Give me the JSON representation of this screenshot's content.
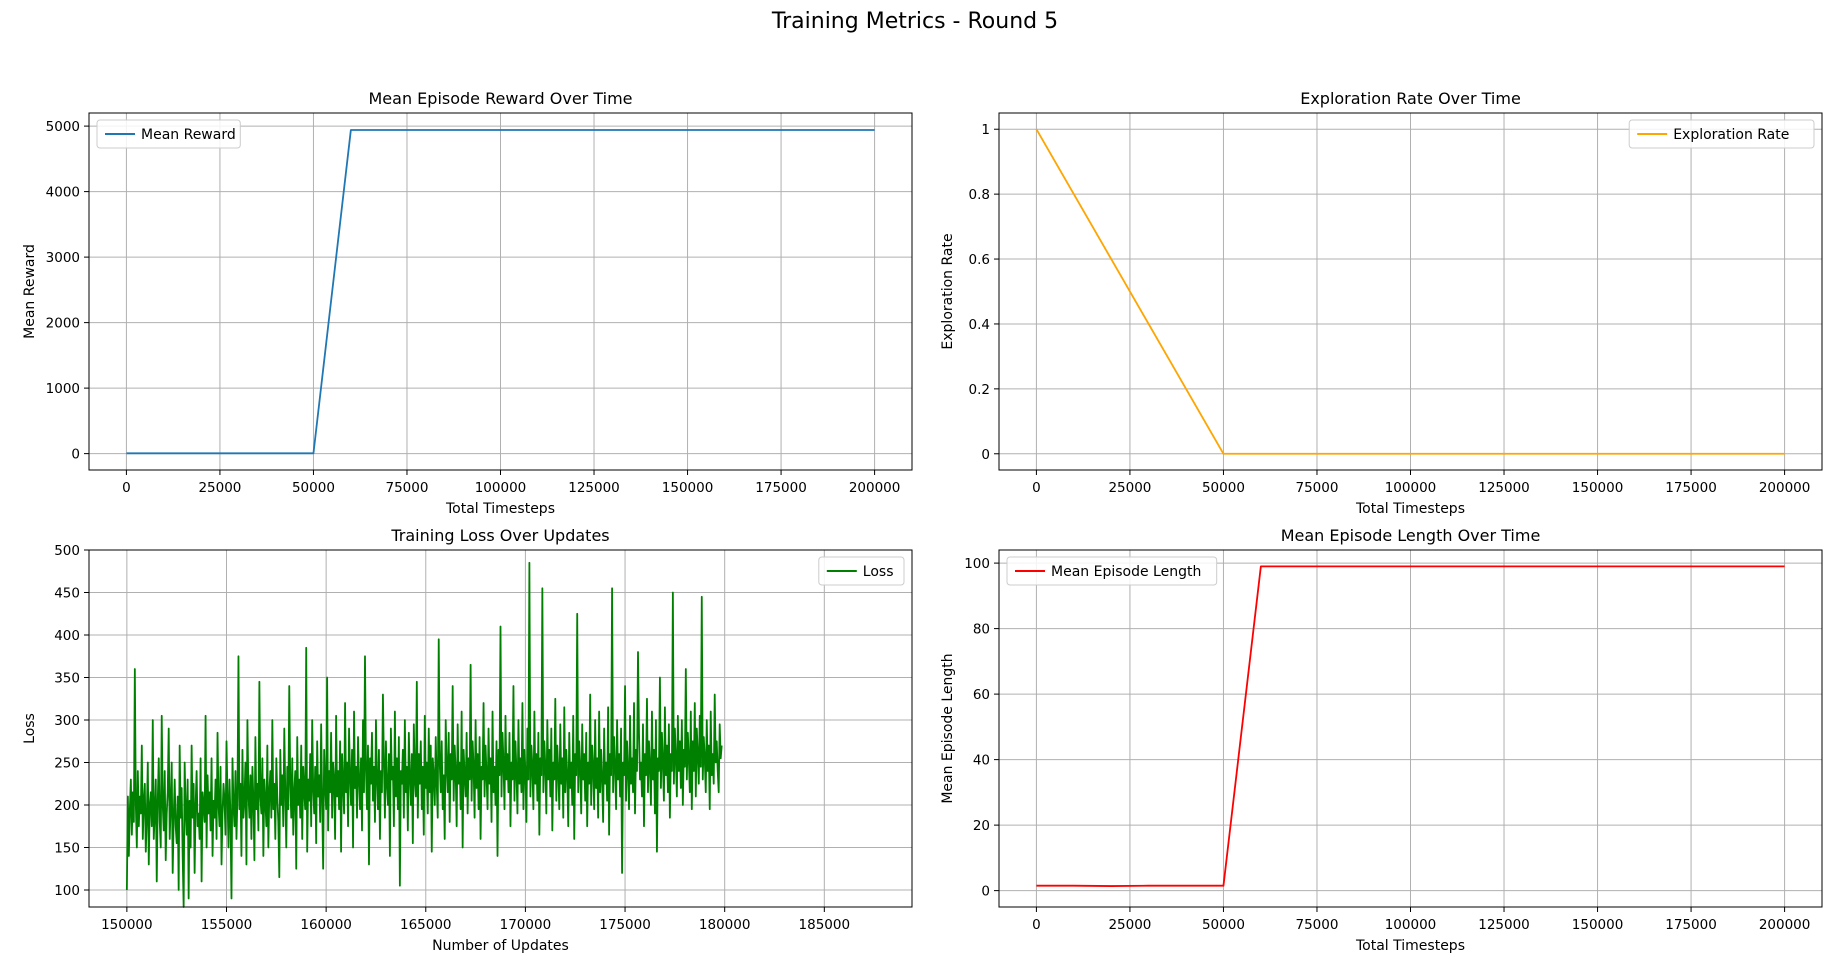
{
  "figure": {
    "title": "Training Metrics - Round 5"
  },
  "chart_data": [
    {
      "type": "line",
      "title": "Mean Episode Reward Over Time",
      "xlabel": "Total Timesteps",
      "ylabel": "Mean Reward",
      "xlim": [
        -10000,
        210000
      ],
      "ylim": [
        -250,
        5200
      ],
      "xticks": [
        0,
        25000,
        50000,
        75000,
        100000,
        125000,
        150000,
        175000,
        200000
      ],
      "yticks": [
        0,
        1000,
        2000,
        3000,
        4000,
        5000
      ],
      "grid": true,
      "legend_position": "upper-left",
      "series": [
        {
          "name": "Mean Reward",
          "color": "#1f77b4",
          "x": [
            0,
            10000,
            20000,
            30000,
            40000,
            50000,
            60000,
            80000,
            100000,
            120000,
            140000,
            160000,
            180000,
            200000
          ],
          "y": [
            5,
            5,
            5,
            5,
            5,
            5,
            4940,
            4940,
            4940,
            4940,
            4940,
            4940,
            4940,
            4940
          ]
        }
      ]
    },
    {
      "type": "line",
      "title": "Exploration Rate Over Time",
      "xlabel": "Total Timesteps",
      "ylabel": "Exploration Rate",
      "xlim": [
        -10000,
        210000
      ],
      "ylim": [
        -0.05,
        1.05
      ],
      "xticks": [
        0,
        25000,
        50000,
        75000,
        100000,
        125000,
        150000,
        175000,
        200000
      ],
      "yticks": [
        0.0,
        0.2,
        0.4,
        0.6,
        0.8,
        1.0
      ],
      "grid": true,
      "legend_position": "upper-right",
      "series": [
        {
          "name": "Exploration Rate",
          "color": "#ffa500",
          "x": [
            0,
            50000,
            60000,
            100000,
            150000,
            200000
          ],
          "y": [
            1.0,
            0.0,
            0.0,
            0.0,
            0.0,
            0.0
          ]
        }
      ]
    },
    {
      "type": "line",
      "title": "Training Loss Over Updates",
      "xlabel": "Number of Updates",
      "ylabel": "Loss",
      "xlim": [
        148100,
        189400
      ],
      "ylim": [
        80,
        500
      ],
      "xticks": [
        150000,
        155000,
        160000,
        165000,
        170000,
        175000,
        180000,
        185000
      ],
      "yticks": [
        100,
        150,
        200,
        250,
        300,
        350,
        400,
        450,
        500
      ],
      "grid": true,
      "legend_position": "upper-right",
      "series": [
        {
          "name": "Loss",
          "color": "#008000",
          "x_start": 150000,
          "x_step": 50,
          "y": [
            100,
            210,
            140,
            195,
            230,
            165,
            215,
            180,
            360,
            200,
            150,
            240,
            175,
            210,
            190,
            270,
            160,
            205,
            225,
            145,
            185,
            250,
            130,
            200,
            215,
            175,
            300,
            160,
            190,
            230,
            110,
            205,
            255,
            180,
            150,
            305,
            200,
            170,
            240,
            135,
            190,
            215,
            290,
            160,
            200,
            250,
            120,
            185,
            230,
            175,
            155,
            210,
            100,
            270,
            185,
            220,
            140,
            80,
            250,
            195,
            165,
            230,
            90,
            205,
            150,
            270,
            185,
            225,
            120,
            200,
            240,
            175,
            190,
            160,
            255,
            110,
            215,
            200,
            180,
            305,
            150,
            235,
            190,
            215,
            170,
            255,
            140,
            205,
            185,
            230,
            160,
            285,
            200,
            175,
            245,
            130,
            190,
            225,
            205,
            165,
            275,
            210,
            150,
            230,
            185,
            90,
            255,
            200,
            175,
            240,
            160,
            210,
            375,
            195,
            225,
            140,
            265,
            185,
            205,
            250,
            130,
            300,
            215,
            185,
            235,
            160,
            245,
            205,
            135,
            280,
            195,
            225,
            170,
            345,
            210,
            190,
            255,
            140,
            230,
            205,
            175,
            270,
            150,
            215,
            240,
            185,
            300,
            195,
            225,
            160,
            255,
            210,
            180,
            115,
            265,
            200,
            235,
            175,
            290,
            215,
            150,
            245,
            195,
            340,
            225,
            185,
            255,
            165,
            215,
            240,
            125,
            280,
            200,
            230,
            185,
            270,
            160,
            245,
            215,
            195,
            385,
            145,
            230,
            205,
            260,
            175,
            300,
            220,
            190,
            245,
            155,
            275,
            210,
            235,
            180,
            295,
            205,
            125,
            265,
            225,
            195,
            350,
            170,
            240,
            215,
            285,
            185,
            250,
            230,
            160,
            305,
            210,
            240,
            195,
            275,
            145,
            260,
            225,
            190,
            320,
            215,
            250,
            175,
            290,
            235,
            200,
            265,
            150,
            310,
            220,
            245,
            185,
            280,
            230,
            195,
            255,
            170,
            300,
            215,
            375,
            240,
            195,
            270,
            130,
            255,
            225,
            285,
            205,
            245,
            180,
            300,
            230,
            195,
            265,
            160,
            240,
            215,
            330,
            250,
            185,
            275,
            225,
            200,
            260,
            140,
            290,
            230,
            245,
            175,
            310,
            210,
            255,
            195,
            280,
            105,
            240,
            225,
            265,
            185,
            300,
            215,
            245,
            170,
            285,
            235,
            200,
            260,
            155,
            295,
            230,
            210,
            345,
            185,
            260,
            225,
            275,
            195,
            245,
            165,
            305,
            220,
            250,
            190,
            290,
            215,
            270,
            145,
            255,
            235,
            200,
            280,
            225,
            185,
            395,
            250,
            215,
            275,
            195,
            235,
            160,
            300,
            245,
            215,
            285,
            180,
            260,
            230,
            340,
            205,
            270,
            240,
            175,
            295,
            225,
            250,
            195,
            310,
            150,
            265,
            235,
            210,
            285,
            190,
            255,
            230,
            365,
            205,
            275,
            245,
            185,
            300,
            220,
            260,
            195,
            280,
            160,
            245,
            230,
            320,
            210,
            270,
            235,
            195,
            290,
            225,
            255,
            180,
            310,
            215,
            245,
            200,
            275,
            140,
            265,
            235,
            410,
            210,
            285,
            250,
            195,
            305,
            230,
            260,
            215,
            285,
            175,
            250,
            230,
            340,
            205,
            275,
            240,
            190,
            300,
            225,
            255,
            215,
            320,
            195,
            265,
            240,
            180,
            290,
            230,
            485,
            210,
            270,
            245,
            195,
            310,
            225,
            260,
            205,
            285,
            165,
            255,
            235,
            455,
            215,
            275,
            245,
            190,
            300,
            230,
            265,
            210,
            290,
            170,
            250,
            230,
            325,
            205,
            270,
            240,
            195,
            295,
            225,
            255,
            185,
            315,
            215,
            265,
            235,
            175,
            285,
            220,
            250,
            200,
            305,
            160,
            260,
            235,
            425,
            215,
            275,
            245,
            190,
            295,
            230,
            260,
            205,
            285,
            175,
            250,
            225,
            330,
            200,
            270,
            245,
            195,
            300,
            220,
            255,
            185,
            310,
            215,
            265,
            230,
            180,
            290,
            225,
            250,
            205,
            315,
            165,
            260,
            235,
            455,
            215,
            280,
            245,
            195,
            300,
            230,
            260,
            210,
            290,
            120,
            250,
            235,
            340,
            205,
            275,
            240,
            195,
            305,
            225,
            255,
            215,
            320,
            190,
            265,
            240,
            380,
            285,
            230,
            250,
            210,
            295,
            175,
            260,
            235,
            325,
            215,
            275,
            245,
            200,
            310,
            230,
            265,
            190,
            300,
            145,
            255,
            240,
            350,
            220,
            285,
            250,
            205,
            315,
            235,
            270,
            215,
            295,
            185,
            260,
            240,
            450,
            225,
            290,
            255,
            210,
            305,
            240,
            275,
            220,
            300,
            200,
            265,
            245,
            360,
            230,
            285,
            255,
            215,
            310,
            195,
            275,
            240,
            320,
            210,
            290,
            260,
            225,
            305,
            245,
            445,
            230,
            280,
            255,
            215,
            300,
            240,
            270,
            195,
            310,
            235,
            260,
            225,
            330,
            250,
            275,
            240,
            215,
            295,
            255,
            270
          ]
        }
      ]
    },
    {
      "type": "line",
      "title": "Mean Episode Length Over Time",
      "xlabel": "Total Timesteps",
      "ylabel": "Mean Episode Length",
      "xlim": [
        -10000,
        210000
      ],
      "ylim": [
        -5,
        104
      ],
      "xticks": [
        0,
        25000,
        50000,
        75000,
        100000,
        125000,
        150000,
        175000,
        200000
      ],
      "yticks": [
        0,
        20,
        40,
        60,
        80,
        100
      ],
      "grid": true,
      "legend_position": "upper-left",
      "series": [
        {
          "name": "Mean Episode Length",
          "color": "#ff0000",
          "x": [
            0,
            10000,
            20000,
            30000,
            40000,
            50000,
            60000,
            80000,
            100000,
            120000,
            140000,
            160000,
            180000,
            200000
          ],
          "y": [
            1.5,
            1.5,
            1.4,
            1.5,
            1.5,
            1.5,
            99,
            99,
            99,
            99,
            99,
            99,
            99,
            99
          ]
        }
      ]
    }
  ]
}
